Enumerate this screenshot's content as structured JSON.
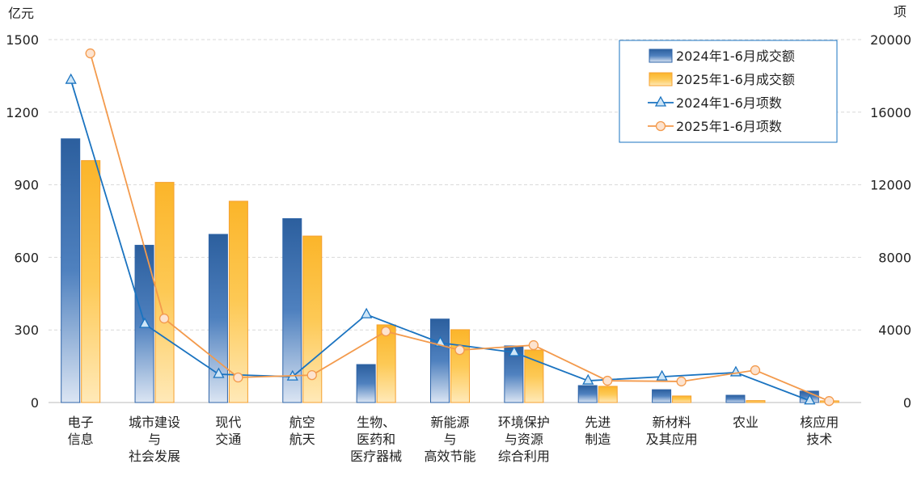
{
  "chart_data": {
    "type": "bar",
    "title": "",
    "ylabel": "亿元",
    "y2label": "项",
    "ylim": [
      0,
      1500
    ],
    "y2lim": [
      0,
      20000
    ],
    "yticks": [
      0,
      300,
      600,
      900,
      1200,
      1500
    ],
    "y2ticks": [
      0,
      4000,
      8000,
      12000,
      16000,
      20000
    ],
    "grid": true,
    "legend_position": "top-right",
    "categories": [
      [
        "电子",
        "信息"
      ],
      [
        "城市建设",
        "与",
        "社会发展"
      ],
      [
        "现代",
        "交通"
      ],
      [
        "航空",
        "航天"
      ],
      [
        "生物、",
        "医药和",
        "医疗器械"
      ],
      [
        "新能源",
        "与",
        "高效节能"
      ],
      [
        "环境保护",
        "与资源",
        "综合利用"
      ],
      [
        "先进",
        "制造"
      ],
      [
        "新材料",
        "及其应用"
      ],
      [
        "农业"
      ],
      [
        "核应用",
        "技术"
      ]
    ],
    "series": [
      {
        "name": "2024年1-6月成交额",
        "type": "bar",
        "axis": "left",
        "color": "#2e64a8",
        "values": [
          1090,
          650,
          695,
          760,
          157,
          345,
          234,
          70,
          53,
          30,
          47
        ]
      },
      {
        "name": "2025年1-6月成交额",
        "type": "bar",
        "axis": "left",
        "color": "#fbb931",
        "values": [
          1000,
          910,
          832,
          688,
          321,
          301,
          217,
          67,
          27,
          8,
          7
        ]
      },
      {
        "name": "2024年1-6月项数",
        "type": "line",
        "axis": "right",
        "color": "#1a73c0",
        "marker": "triangle",
        "values": [
          17770,
          4320,
          1560,
          1420,
          4850,
          3290,
          2760,
          1200,
          1420,
          1650,
          100
        ]
      },
      {
        "name": "2025年1-6月项数",
        "type": "line",
        "axis": "right",
        "color": "#f39a4c",
        "marker": "circle",
        "values": [
          19240,
          4630,
          1380,
          1510,
          3920,
          2890,
          3160,
          1200,
          1160,
          1780,
          80
        ]
      }
    ]
  }
}
